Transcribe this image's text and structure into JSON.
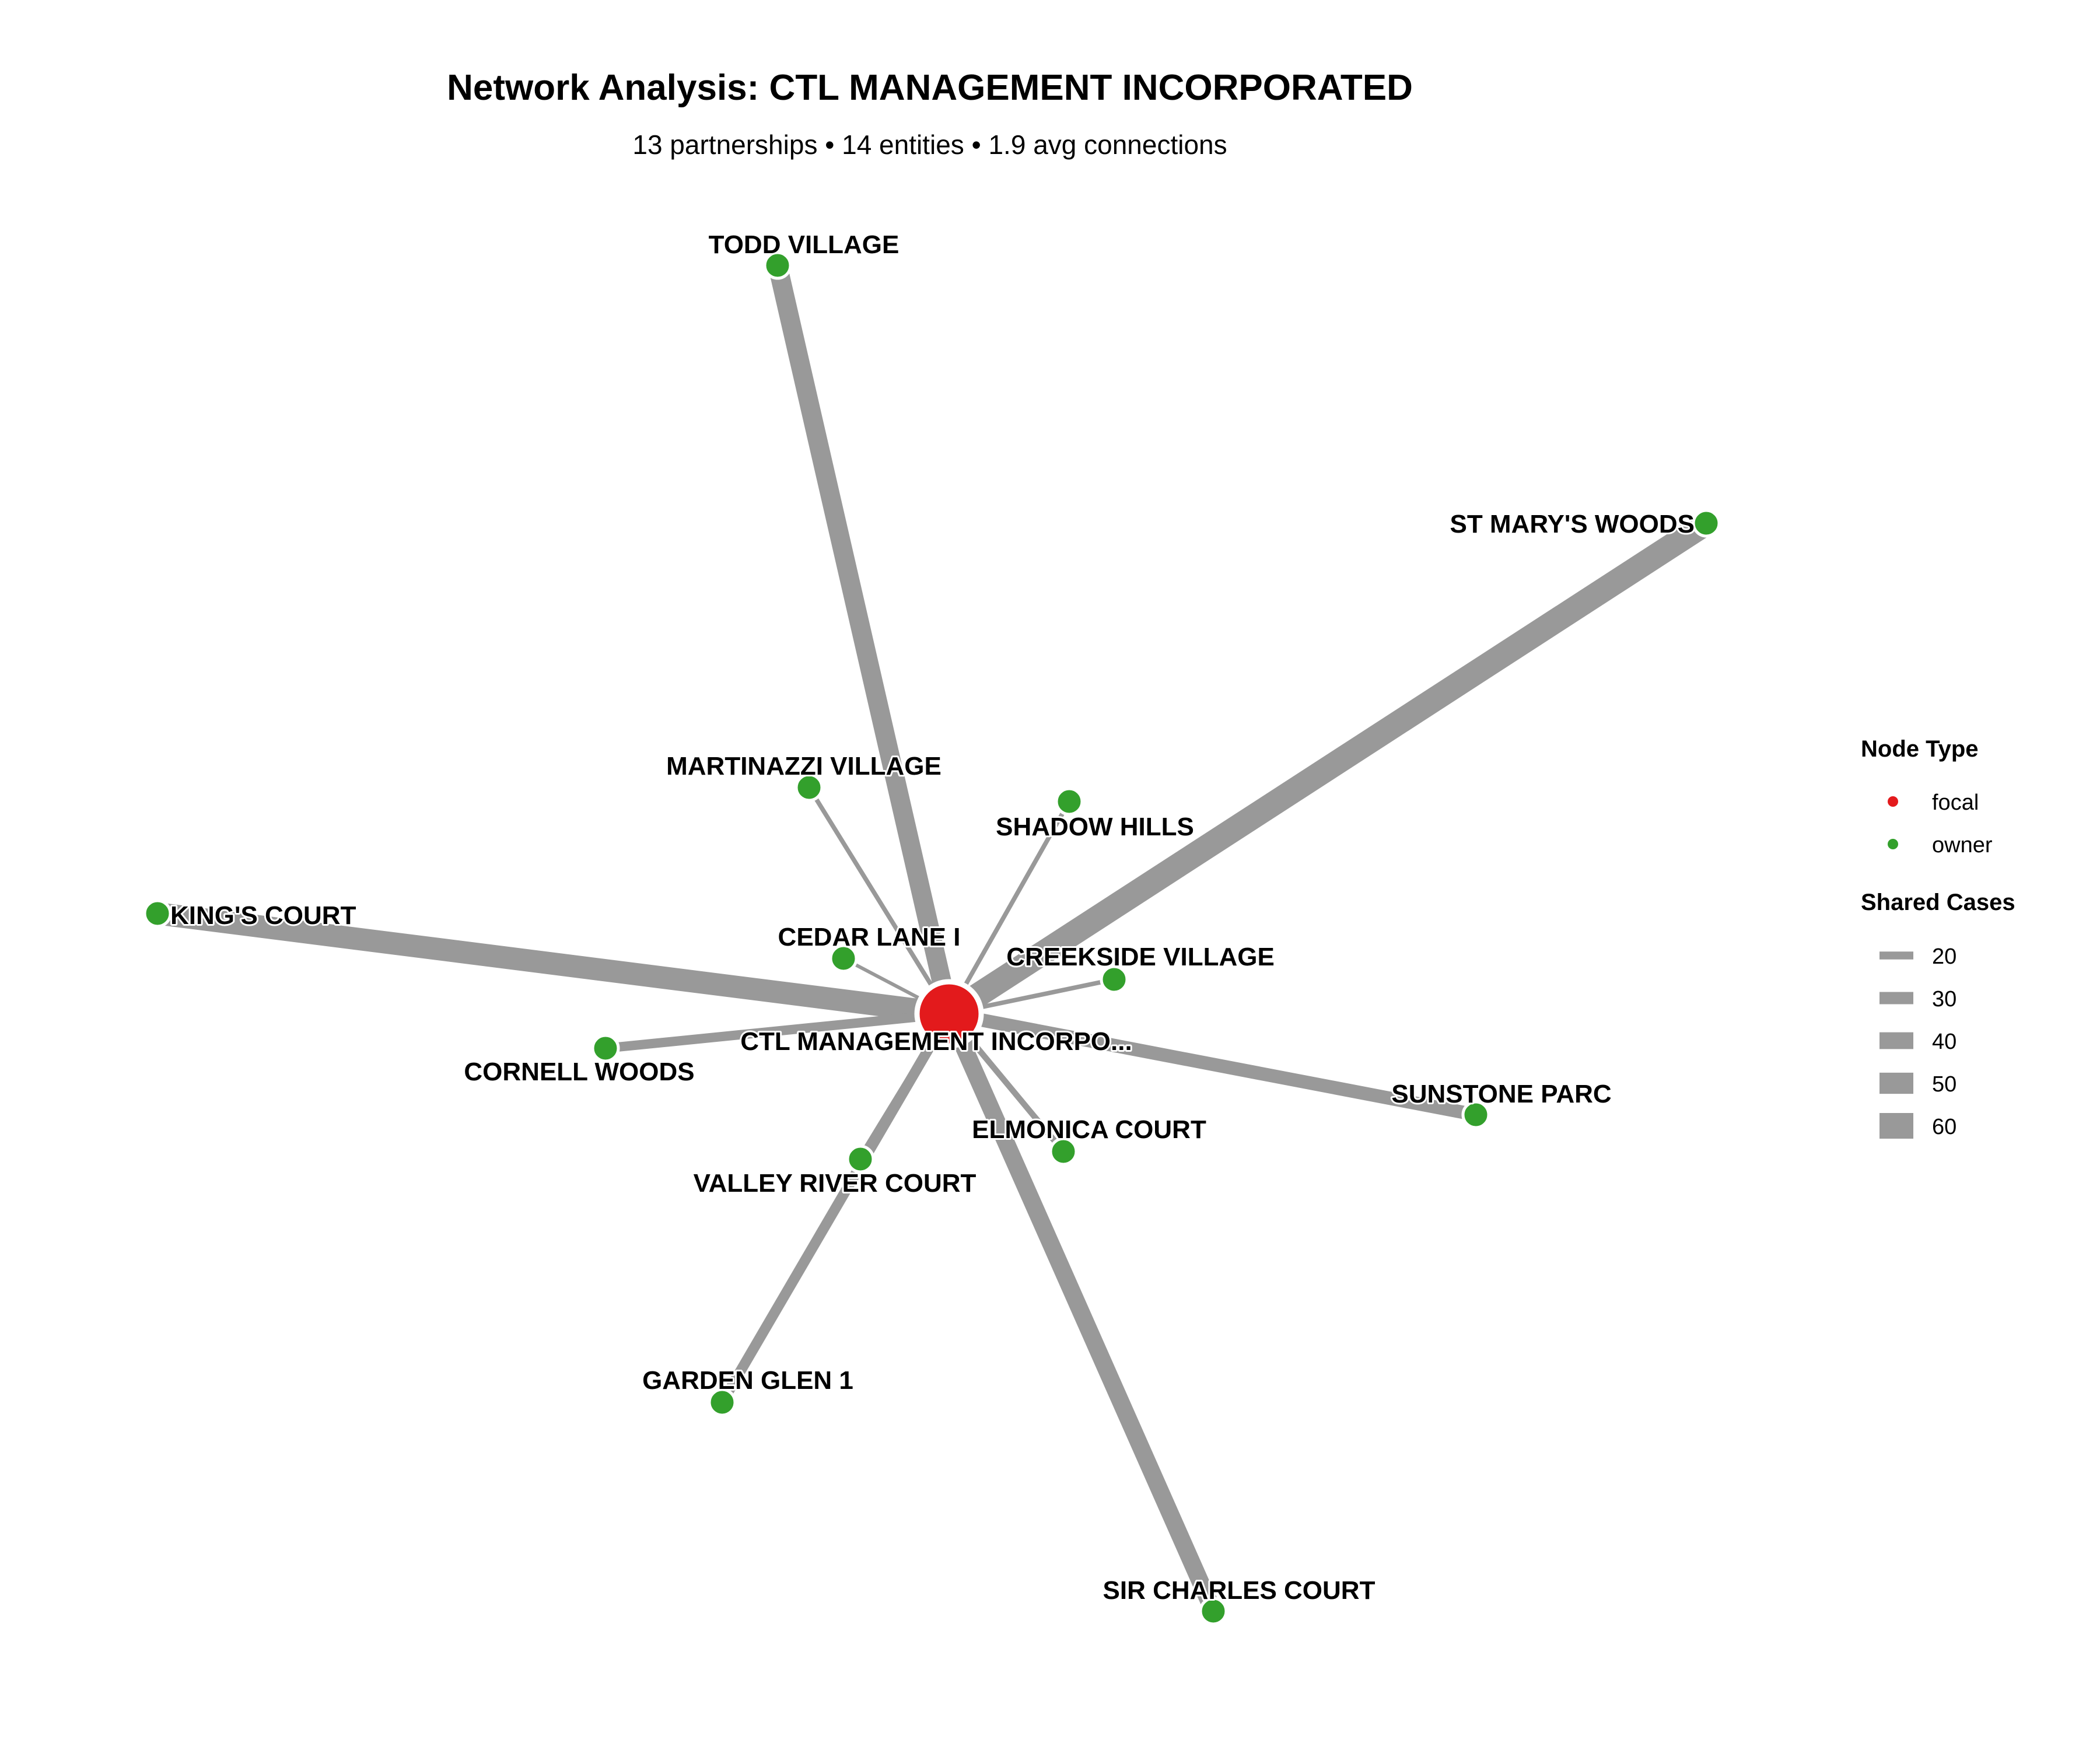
{
  "header": {
    "title": "Network Analysis: CTL MANAGEMENT INCORPORATED",
    "subtitle": "13 partnerships • 14 entities • 1.9 avg connections"
  },
  "colors": {
    "focal": "#e31a1c",
    "owner": "#33a02c",
    "edge": "#999999",
    "node_outline": "#ffffff"
  },
  "network": {
    "focal": {
      "id": "ctl",
      "label": "CTL MANAGEMENT INCORPO...",
      "type": "focal"
    },
    "nodes": [
      {
        "id": "todd",
        "label": "TODD VILLAGE",
        "type": "owner",
        "shared_cases": 52
      },
      {
        "id": "stmary",
        "label": "ST MARY'S WOODS",
        "type": "owner",
        "shared_cases": 62
      },
      {
        "id": "martinazzi",
        "label": "MARTINAZZI VILLAGE",
        "type": "owner",
        "shared_cases": 22
      },
      {
        "id": "shadow",
        "label": "SHADOW HILLS",
        "type": "owner",
        "shared_cases": 22
      },
      {
        "id": "kings",
        "label": "KING'S COURT",
        "type": "owner",
        "shared_cases": 58
      },
      {
        "id": "cedar",
        "label": "CEDAR LANE I",
        "type": "owner",
        "shared_cases": 20
      },
      {
        "id": "creekside",
        "label": "CREEKSIDE VILLAGE",
        "type": "owner",
        "shared_cases": 22
      },
      {
        "id": "cornell",
        "label": "CORNELL WOODS",
        "type": "owner",
        "shared_cases": 32
      },
      {
        "id": "sunstone",
        "label": "SUNSTONE PARC",
        "type": "owner",
        "shared_cases": 40
      },
      {
        "id": "elmonica",
        "label": "ELMONICA COURT",
        "type": "owner",
        "shared_cases": 25
      },
      {
        "id": "valley",
        "label": "VALLEY RIVER COURT",
        "type": "owner",
        "shared_cases": 28
      },
      {
        "id": "garden",
        "label": "GARDEN GLEN 1",
        "type": "owner",
        "shared_cases": 34
      },
      {
        "id": "sircharles",
        "label": "SIR CHARLES COURT",
        "type": "owner",
        "shared_cases": 48
      }
    ]
  },
  "legend": {
    "node_type_title": "Node Type",
    "node_types": [
      {
        "label": "focal",
        "color": "#e31a1c"
      },
      {
        "label": "owner",
        "color": "#33a02c"
      }
    ],
    "shared_cases_title": "Shared Cases",
    "shared_cases": [
      {
        "label": "20",
        "value": 20
      },
      {
        "label": "30",
        "value": 30
      },
      {
        "label": "40",
        "value": 40
      },
      {
        "label": "50",
        "value": 50
      },
      {
        "label": "60",
        "value": 60
      }
    ]
  }
}
